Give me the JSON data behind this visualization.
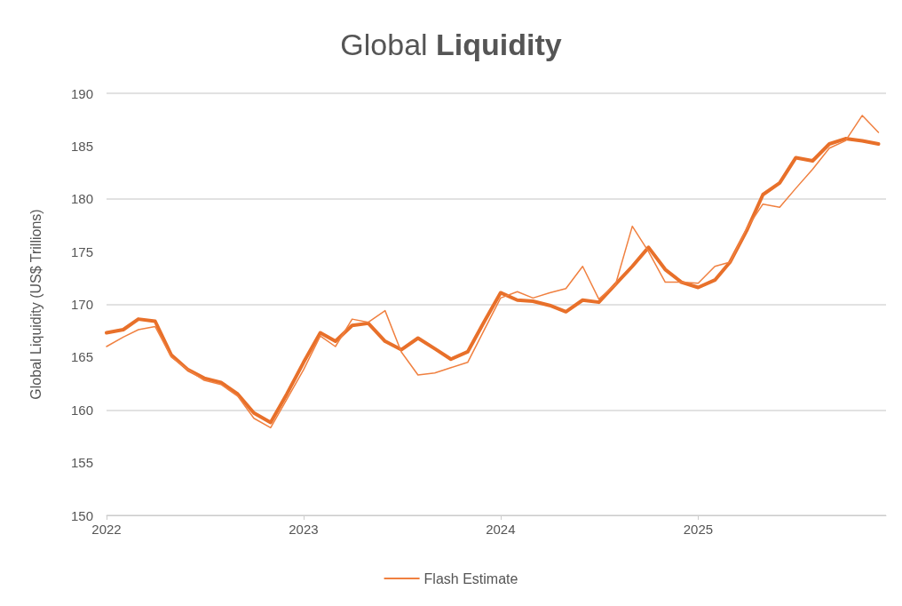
{
  "chart_data": {
    "type": "line",
    "title": "Global Liquidity",
    "ylabel": "Global Liquidity (US$ Trillions)",
    "x": [
      "2022-01",
      "2022-02",
      "2022-03",
      "2022-04",
      "2022-05",
      "2022-06",
      "2022-07",
      "2022-08",
      "2022-09",
      "2022-10",
      "2022-11",
      "2022-12",
      "2023-01",
      "2023-02",
      "2023-03",
      "2023-04",
      "2023-05",
      "2023-06",
      "2023-07",
      "2023-08",
      "2023-09",
      "2023-10",
      "2023-11",
      "2023-12",
      "2024-01",
      "2024-02",
      "2024-03",
      "2024-04",
      "2024-05",
      "2024-06",
      "2024-07",
      "2024-08",
      "2024-09",
      "2024-10",
      "2024-11",
      "2024-12",
      "2025-01",
      "2025-02",
      "2025-03",
      "2025-04",
      "2025-05",
      "2025-06",
      "2025-07",
      "2025-08",
      "2025-09",
      "2025-10",
      "2025-11",
      "2025-12"
    ],
    "series": [
      {
        "color": "#e8702a",
        "values": [
          167.3,
          167.6,
          168.6,
          168.4,
          165.2,
          163.8,
          163.0,
          162.6,
          161.5,
          159.7,
          158.8,
          161.5,
          164.5,
          167.3,
          166.5,
          168.0,
          168.2,
          166.5,
          165.7,
          166.8,
          165.8,
          164.8,
          165.5,
          168.3,
          171.1,
          170.4,
          170.3,
          169.9,
          169.3,
          170.4,
          170.2,
          171.9,
          173.6,
          175.4,
          173.3,
          172.1,
          171.6,
          172.3,
          174.0,
          177.0,
          180.4,
          181.5,
          183.9,
          183.6,
          185.2,
          185.7,
          185.5,
          185.2
        ]
      },
      {
        "name": "Flash Estimate",
        "color": "#f08040",
        "values": [
          166.0,
          166.9,
          167.6,
          167.9,
          165.0,
          163.8,
          162.8,
          162.4,
          161.3,
          159.2,
          158.3,
          161.0,
          163.8,
          167.0,
          166.0,
          168.6,
          168.3,
          169.4,
          165.5,
          163.3,
          163.5,
          164.0,
          164.5,
          167.5,
          170.6,
          171.2,
          170.6,
          171.1,
          171.5,
          173.6,
          170.5,
          171.9,
          177.4,
          175.0,
          172.1,
          172.1,
          172.0,
          173.6,
          174.0,
          177.2,
          179.5,
          179.2,
          181.0,
          182.8,
          184.8,
          185.5,
          187.9,
          186.3
        ]
      }
    ],
    "xlim": [
      "2022-01",
      "2025-12-15"
    ],
    "xticks": [
      "2022",
      "2023",
      "2024",
      "2025"
    ],
    "ylim": [
      150,
      190
    ],
    "yticks": [
      150,
      155,
      160,
      165,
      170,
      175,
      180,
      185,
      190
    ],
    "grid": "y",
    "legend": "bottom",
    "marker": "none",
    "line_style": "solid"
  }
}
